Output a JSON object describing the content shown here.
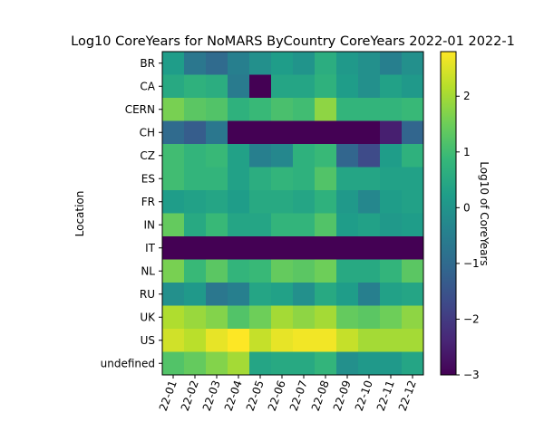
{
  "chart_data": {
    "type": "heatmap",
    "title": "Log10 CoreYears for NoMARS ByCountry CoreYears 2022-01 2022-1",
    "xlabel": "",
    "ylabel": "Location",
    "colorbar_label": "Log10 of CoreYears",
    "colormap": "viridis",
    "vmin": -3,
    "vmax": 2.8,
    "colorbar_ticks": [
      "−3",
      "−2",
      "−1",
      "0",
      "1",
      "2"
    ],
    "colorbar_tick_values": [
      -3,
      -2,
      -1,
      0,
      1,
      2
    ],
    "x_categories": [
      "22-01",
      "22-02",
      "22-03",
      "22-04",
      "22-05",
      "22-06",
      "22-07",
      "22-08",
      "22-09",
      "22-10",
      "22-11",
      "22-12"
    ],
    "y_categories": [
      "BR",
      "CA",
      "CERN",
      "CH",
      "CZ",
      "ES",
      "FR",
      "IN",
      "IT",
      "NL",
      "RU",
      "UK",
      "US",
      "undefined"
    ],
    "values": [
      [
        0.2,
        -0.7,
        -1.0,
        -0.5,
        -0.1,
        0.2,
        0.0,
        0.6,
        0.1,
        -0.1,
        -0.5,
        -0.1
      ],
      [
        0.5,
        0.7,
        0.6,
        -0.6,
        -3.0,
        0.4,
        0.4,
        0.7,
        0.2,
        -0.1,
        0.3,
        0.1
      ],
      [
        1.6,
        1.3,
        1.2,
        0.7,
        0.9,
        1.1,
        1.0,
        1.8,
        0.8,
        0.8,
        0.8,
        0.9
      ],
      [
        -1.0,
        -1.3,
        -0.7,
        -3.0,
        -3.0,
        -3.0,
        -3.0,
        -3.0,
        -3.0,
        -3.0,
        -2.5,
        -1.1
      ],
      [
        1.0,
        0.8,
        0.9,
        0.3,
        -0.5,
        -0.3,
        0.7,
        0.9,
        -1.1,
        -1.7,
        0.2,
        0.7
      ],
      [
        1.0,
        0.8,
        0.8,
        0.3,
        0.6,
        0.8,
        0.7,
        1.2,
        0.4,
        0.4,
        0.3,
        0.3
      ],
      [
        0.2,
        0.3,
        0.4,
        0.2,
        0.5,
        0.5,
        0.4,
        0.7,
        0.1,
        -0.3,
        0.2,
        0.3
      ],
      [
        1.4,
        0.5,
        0.9,
        0.4,
        0.4,
        0.8,
        0.8,
        1.2,
        0.2,
        0.3,
        0.1,
        0.2
      ],
      [
        -3.0,
        -3.0,
        -3.0,
        -3.0,
        -3.0,
        -3.0,
        -3.0,
        -3.0,
        -3.0,
        -3.0,
        -3.0,
        -3.0
      ],
      [
        1.6,
        0.9,
        1.3,
        0.8,
        0.9,
        1.4,
        1.3,
        1.5,
        0.5,
        0.5,
        0.8,
        1.3
      ],
      [
        -0.1,
        0.1,
        -0.7,
        -0.5,
        0.4,
        0.3,
        -0.1,
        0.5,
        0.2,
        -0.5,
        0.3,
        0.4
      ],
      [
        2.1,
        1.9,
        1.7,
        1.2,
        1.5,
        2.0,
        1.8,
        2.0,
        1.4,
        1.3,
        1.5,
        1.8
      ],
      [
        2.4,
        2.2,
        2.6,
        2.8,
        2.3,
        2.6,
        2.7,
        2.7,
        2.3,
        2.0,
        2.0,
        2.0
      ],
      [
        1.2,
        1.4,
        1.7,
        2.0,
        0.4,
        0.5,
        0.5,
        0.8,
        -0.1,
        0.1,
        0.1,
        0.4
      ]
    ]
  }
}
